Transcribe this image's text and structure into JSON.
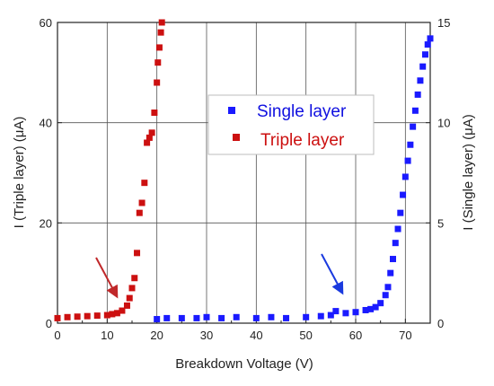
{
  "chart_data": {
    "type": "scatter",
    "xlabel": "Breakdown Voltage (V)",
    "ylabel_left": "I (Triple layer) (μA)",
    "ylabel_right": "I (Single layer) (μA)",
    "xlim": [
      0,
      75
    ],
    "ylim_left": [
      0,
      60
    ],
    "ylim_right": [
      0,
      15
    ],
    "x_ticks": [
      "0",
      "10",
      "20",
      "30",
      "40",
      "50",
      "60",
      "70"
    ],
    "y_left_ticks": [
      "0",
      "20",
      "40",
      "60"
    ],
    "y_right_ticks": [
      "0",
      "5",
      "10",
      "15"
    ],
    "grid": true,
    "legend_placement": "center-right",
    "series": [
      {
        "name": "Single layer",
        "color": "#1a1aff",
        "marker": "square",
        "axis": "right",
        "x": [
          20,
          22,
          25,
          28,
          30,
          33,
          36,
          40,
          43,
          46,
          50,
          53,
          55,
          56,
          58,
          60,
          62,
          63,
          64,
          65,
          66,
          66.5,
          67,
          67.5,
          68,
          68.5,
          69,
          69.5,
          70,
          70.5,
          71,
          71.5,
          72,
          72.5,
          73,
          73.5,
          74,
          74.5,
          75
        ],
        "values": [
          0.2,
          0.25,
          0.25,
          0.25,
          0.3,
          0.25,
          0.3,
          0.25,
          0.3,
          0.25,
          0.3,
          0.35,
          0.4,
          0.6,
          0.5,
          0.55,
          0.65,
          0.7,
          0.8,
          1.0,
          1.4,
          1.8,
          2.5,
          3.2,
          4.0,
          4.7,
          5.5,
          6.4,
          7.3,
          8.1,
          8.9,
          9.8,
          10.6,
          11.4,
          12.1,
          12.8,
          13.4,
          13.9,
          14.2
        ]
      },
      {
        "name": "Triple layer",
        "color": "#cc1010",
        "marker": "square",
        "axis": "left",
        "x": [
          0,
          2,
          4,
          6,
          8,
          10,
          11,
          12,
          13,
          14,
          14.5,
          15,
          15.5,
          16,
          16.5,
          17,
          17.5,
          18,
          18.5,
          19,
          19.5,
          20,
          20.2,
          20.5,
          20.8,
          21
        ],
        "values": [
          1.0,
          1.2,
          1.3,
          1.4,
          1.5,
          1.6,
          1.8,
          2.0,
          2.5,
          3.5,
          5,
          7,
          9,
          14,
          22,
          24,
          28,
          36,
          37,
          38,
          42,
          48,
          52,
          55,
          58,
          60
        ]
      }
    ]
  }
}
